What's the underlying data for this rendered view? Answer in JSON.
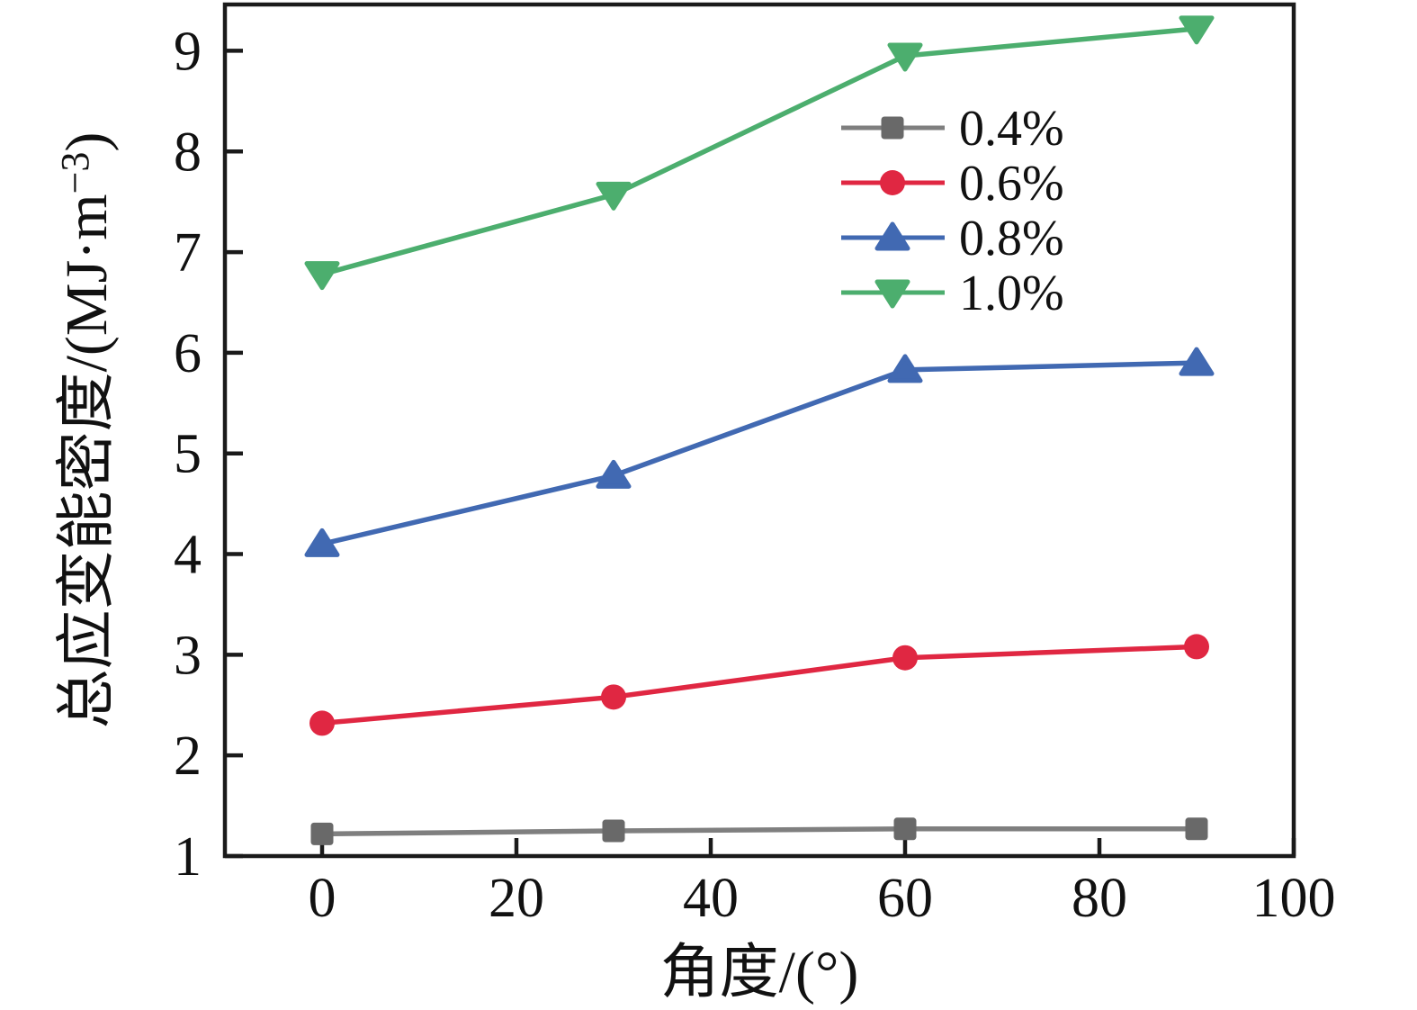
{
  "figure": {
    "background": "#ffffff",
    "axis_color": "#1a1a1a",
    "text_color": "#111111"
  },
  "chart_data": {
    "type": "line",
    "x": [
      0,
      30,
      60,
      90
    ],
    "series": [
      {
        "name": "0.4%",
        "marker": "square",
        "color": "#696969",
        "line_color": "#7f7f7f",
        "values": [
          1.22,
          1.25,
          1.27,
          1.27
        ]
      },
      {
        "name": "0.6%",
        "marker": "circle",
        "color": "#E02742",
        "line_color": "#E02742",
        "values": [
          2.32,
          2.58,
          2.97,
          3.08
        ]
      },
      {
        "name": "0.8%",
        "marker": "triangle-up",
        "color": "#4169B2",
        "line_color": "#4169B2",
        "values": [
          4.1,
          4.78,
          5.83,
          5.9
        ]
      },
      {
        "name": "1.0%",
        "marker": "triangle-down",
        "color": "#4CAE6E",
        "line_color": "#4CAE6E",
        "values": [
          6.78,
          7.57,
          8.95,
          9.22
        ]
      }
    ],
    "xlabel": "角度/(°)",
    "ylabel": "总应变能密度/(MJ·m⁻³)",
    "ylabel_parts": {
      "main": "总应变能密度/(MJ·m",
      "sup": "−3",
      "close": ")"
    },
    "x_ticks": [
      0,
      20,
      40,
      60,
      80,
      100
    ],
    "y_ticks": [
      1,
      2,
      3,
      4,
      5,
      6,
      7,
      8,
      9
    ],
    "xlim": [
      -10,
      100
    ],
    "ylim": [
      1,
      9.46
    ],
    "grid": false,
    "legend_position": "upper-right-inside",
    "legend_entries": [
      "0.4%",
      "0.6%",
      "0.8%",
      "1.0%"
    ]
  }
}
